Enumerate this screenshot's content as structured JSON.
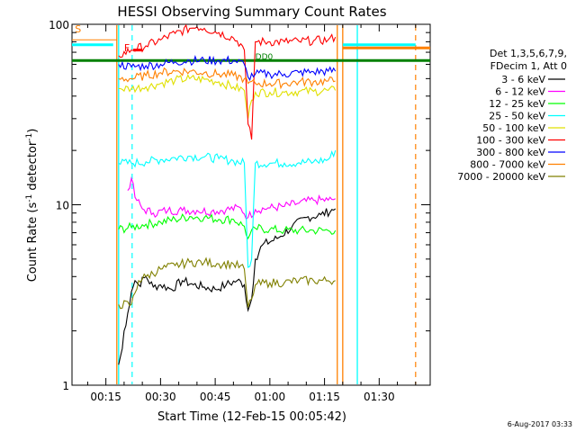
{
  "chart_data": {
    "type": "line",
    "title": "HESSI Observing Summary Count Rates",
    "xlabel": "Start Time (12-Feb-15 00:05:42)",
    "ylabel_main": "Count Rate (s",
    "ylabel_sup1": "-1",
    "ylabel_mid": " detector",
    "ylabel_sup2": "-1",
    "ylabel_end": ")",
    "yscale": "log",
    "ylim": [
      1,
      100
    ],
    "xlim_minutes": [
      5.7,
      104
    ],
    "x_ticks": [
      {
        "m": 15,
        "label": "00:15"
      },
      {
        "m": 30,
        "label": "00:30"
      },
      {
        "m": 45,
        "label": "00:45"
      },
      {
        "m": 60,
        "label": "01:00"
      },
      {
        "m": 75,
        "label": "01:15"
      },
      {
        "m": 90,
        "label": "01:30"
      },
      {
        "m": 105,
        "label": "01:45"
      }
    ],
    "y_ticks": [
      {
        "v": 1,
        "label": "1"
      },
      {
        "v": 10,
        "label": "10"
      },
      {
        "v": 100,
        "label": "100"
      }
    ],
    "legend_header": [
      "Det 1,3,5,6,7,9,",
      "FDecim 1, Att 0"
    ],
    "legend_position": "right",
    "series": [
      {
        "name": "3 - 6 keV",
        "color": "#000000",
        "points": [
          [
            18.5,
            1.3
          ],
          [
            19.5,
            1.6
          ],
          [
            20,
            2
          ],
          [
            21,
            2.5
          ],
          [
            22,
            3.3
          ],
          [
            23,
            3.8
          ],
          [
            24,
            3.6
          ],
          [
            26,
            4
          ],
          [
            28,
            3.5
          ],
          [
            30,
            3.6
          ],
          [
            33,
            3.4
          ],
          [
            36,
            3.8
          ],
          [
            39,
            3.6
          ],
          [
            42,
            3.5
          ],
          [
            45,
            3.4
          ],
          [
            48,
            3.6
          ],
          [
            51,
            3.8
          ],
          [
            53,
            3.6
          ],
          [
            54,
            2.6
          ],
          [
            55,
            3
          ],
          [
            56,
            5
          ],
          [
            58,
            6
          ],
          [
            62,
            6.5
          ],
          [
            66,
            7.5
          ],
          [
            70,
            8.5
          ],
          [
            74,
            8.8
          ],
          [
            78,
            9.5
          ]
        ]
      },
      {
        "name": "6 - 12 keV",
        "color": "#ff00ff",
        "points": [
          [
            21,
            12
          ],
          [
            22,
            14
          ],
          [
            23,
            11
          ],
          [
            25,
            9.5
          ],
          [
            28,
            9
          ],
          [
            32,
            9.3
          ],
          [
            36,
            9.3
          ],
          [
            40,
            9.3
          ],
          [
            44,
            9.2
          ],
          [
            48,
            9.4
          ],
          [
            52,
            9.6
          ],
          [
            54,
            8.5
          ],
          [
            56,
            9.4
          ],
          [
            60,
            9.6
          ],
          [
            64,
            9.8
          ],
          [
            68,
            10.2
          ],
          [
            72,
            10.6
          ],
          [
            76,
            10.6
          ],
          [
            78,
            10.8
          ]
        ]
      },
      {
        "name": "12 - 25 keV",
        "color": "#00ff00",
        "points": [
          [
            18.5,
            7.3
          ],
          [
            22,
            7.5
          ],
          [
            26,
            7.8
          ],
          [
            30,
            8
          ],
          [
            34,
            8.3
          ],
          [
            38,
            8.6
          ],
          [
            42,
            8.5
          ],
          [
            46,
            8.3
          ],
          [
            50,
            8.3
          ],
          [
            53,
            7.6
          ],
          [
            54,
            6.5
          ],
          [
            56,
            7.4
          ],
          [
            60,
            7.3
          ],
          [
            64,
            7.2
          ],
          [
            68,
            7.2
          ],
          [
            72,
            7.2
          ],
          [
            76,
            7.2
          ],
          [
            78,
            7.2
          ]
        ]
      },
      {
        "name": "25 - 50 keV",
        "color": "#00ffff",
        "points": [
          [
            18.5,
            17
          ],
          [
            22,
            17
          ],
          [
            26,
            17.3
          ],
          [
            30,
            17.8
          ],
          [
            34,
            18.2
          ],
          [
            38,
            18.6
          ],
          [
            42,
            18.4
          ],
          [
            46,
            18
          ],
          [
            50,
            17.5
          ],
          [
            53,
            17
          ],
          [
            54,
            4.5
          ],
          [
            55,
            5
          ],
          [
            56,
            17
          ],
          [
            60,
            17
          ],
          [
            64,
            17
          ],
          [
            68,
            17.1
          ],
          [
            72,
            17.3
          ],
          [
            76,
            17.8
          ],
          [
            78,
            20
          ]
        ]
      },
      {
        "name": "50 - 100 keV",
        "color": "#e0e000",
        "points": [
          [
            18.5,
            44
          ],
          [
            22,
            44
          ],
          [
            26,
            45
          ],
          [
            30,
            47
          ],
          [
            34,
            49
          ],
          [
            38,
            50
          ],
          [
            42,
            49.5
          ],
          [
            46,
            48
          ],
          [
            50,
            45
          ],
          [
            53,
            43
          ],
          [
            54,
            30
          ],
          [
            55,
            38
          ],
          [
            56,
            42
          ],
          [
            60,
            42
          ],
          [
            64,
            42
          ],
          [
            68,
            42.5
          ],
          [
            72,
            42.5
          ],
          [
            76,
            43
          ],
          [
            78,
            43
          ]
        ]
      },
      {
        "name": "100 - 300 keV",
        "color": "#ff0000",
        "points": [
          [
            18.5,
            67
          ],
          [
            22,
            72
          ],
          [
            26,
            76
          ],
          [
            30,
            82
          ],
          [
            34,
            89
          ],
          [
            38,
            95
          ],
          [
            40,
            97
          ],
          [
            42,
            95
          ],
          [
            46,
            90
          ],
          [
            50,
            84
          ],
          [
            52,
            78
          ],
          [
            53,
            72
          ],
          [
            54,
            28
          ],
          [
            55,
            23
          ],
          [
            56,
            80
          ],
          [
            60,
            80
          ],
          [
            64,
            80
          ],
          [
            68,
            80.5
          ],
          [
            72,
            81
          ],
          [
            76,
            82
          ],
          [
            78,
            85
          ]
        ]
      },
      {
        "name": "300 - 800 keV",
        "color": "#0000ff",
        "points": [
          [
            18.5,
            60
          ],
          [
            22,
            58
          ],
          [
            26,
            59
          ],
          [
            30,
            60
          ],
          [
            34,
            62
          ],
          [
            38,
            63
          ],
          [
            42,
            63
          ],
          [
            46,
            63
          ],
          [
            50,
            63
          ],
          [
            53,
            60
          ],
          [
            54,
            51
          ],
          [
            56,
            53
          ],
          [
            60,
            53
          ],
          [
            64,
            53
          ],
          [
            68,
            54
          ],
          [
            72,
            54.5
          ],
          [
            76,
            55
          ],
          [
            78,
            55
          ]
        ]
      },
      {
        "name": "800 - 7000 keV",
        "color": "#ff8000",
        "points": [
          [
            18.5,
            50
          ],
          [
            22,
            50
          ],
          [
            26,
            52
          ],
          [
            30,
            54
          ],
          [
            34,
            55
          ],
          [
            38,
            55
          ],
          [
            42,
            54
          ],
          [
            46,
            53
          ],
          [
            50,
            52
          ],
          [
            53,
            50
          ],
          [
            54,
            47
          ],
          [
            56,
            47
          ],
          [
            60,
            47
          ],
          [
            64,
            47
          ],
          [
            68,
            48
          ],
          [
            72,
            48
          ],
          [
            76,
            48.5
          ],
          [
            78,
            48.5
          ]
        ]
      },
      {
        "name": "7000 - 20000 keV",
        "color": "#808000",
        "points": [
          [
            18.5,
            2.8
          ],
          [
            22,
            2.8
          ],
          [
            24,
            3.8
          ],
          [
            26,
            4
          ],
          [
            30,
            4.4
          ],
          [
            34,
            4.6
          ],
          [
            38,
            4.8
          ],
          [
            42,
            4.8
          ],
          [
            46,
            4.7
          ],
          [
            50,
            4.7
          ],
          [
            53,
            4.4
          ],
          [
            54,
            2.7
          ],
          [
            55,
            3
          ],
          [
            56,
            3.6
          ],
          [
            60,
            3.7
          ],
          [
            64,
            3.7
          ],
          [
            68,
            3.8
          ],
          [
            72,
            3.8
          ],
          [
            76,
            3.8
          ],
          [
            78,
            3.8
          ]
        ]
      }
    ],
    "markers": {
      "saa_label": "S",
      "flare_label": "F",
      "dropout_label": "DD0",
      "orange_vlines": [
        18,
        78.5,
        80
      ],
      "cyan_vlines": [
        18.5,
        84
      ],
      "cyan_dashed_vlines": [
        22.2
      ],
      "orange_dashed_vlines": [
        100
      ],
      "green_level": 63,
      "saa_bar": {
        "from": 80,
        "to": 104,
        "level": 74
      },
      "cyan_bar": {
        "from": 5.7,
        "to": 17,
        "level": 77
      },
      "orange_bar_left": {
        "from": 5.7,
        "to": 18,
        "level": 82
      },
      "flare_bar": {
        "from": 22.5,
        "to": 25,
        "level": 72
      },
      "cyan_bar_right": {
        "from": 80,
        "to": 100,
        "level": 77
      }
    },
    "timestamp": "6-Aug-2017 03:33"
  }
}
